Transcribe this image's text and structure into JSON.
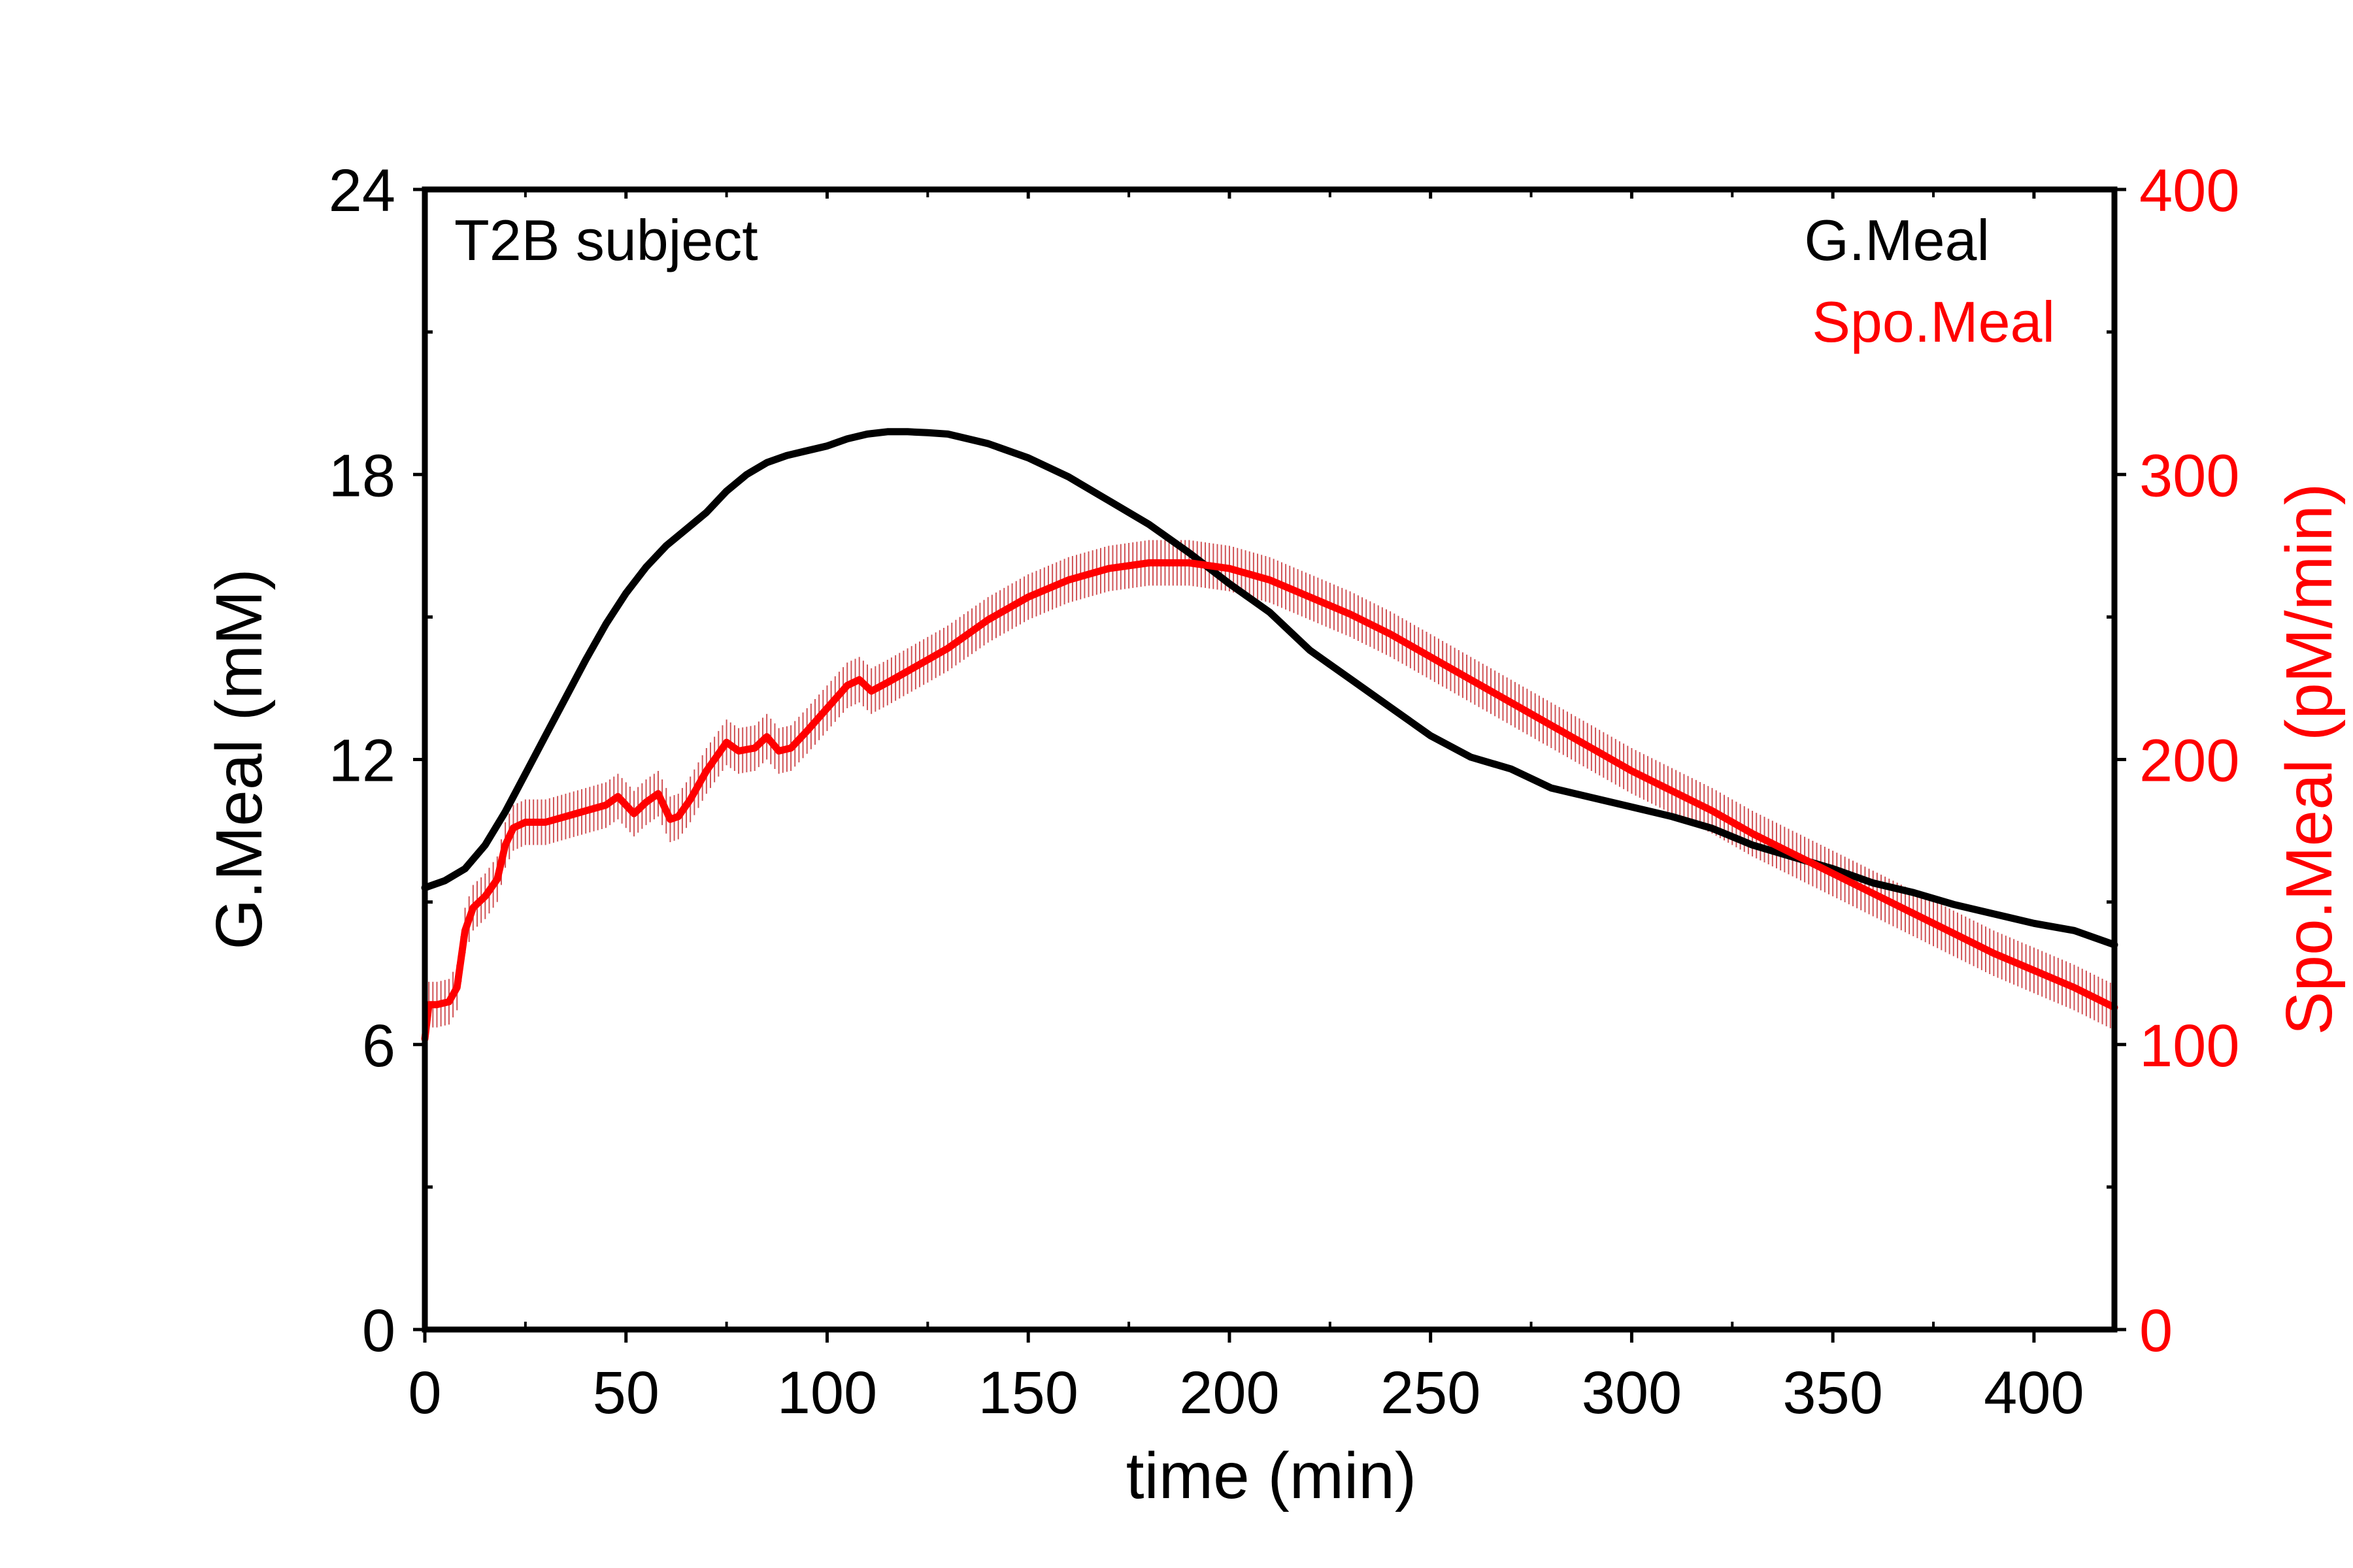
{
  "colors": {
    "left_series": "#000000",
    "right_series": "#ff0000",
    "right_series_band": "#c0181c",
    "axes": "#000000",
    "background": "#ffffff"
  },
  "chart_data": {
    "type": "line",
    "annotation": "T2B subject",
    "legend": {
      "placement": "top-right",
      "entries": [
        {
          "label": "G.Meal",
          "color": "#000000"
        },
        {
          "label": "Spo.Meal",
          "color": "#ff0000"
        }
      ]
    },
    "grid": false,
    "x_axis": {
      "label": "time (min)",
      "range": [
        0,
        420
      ],
      "ticks": [
        0,
        50,
        100,
        150,
        200,
        250,
        300,
        350,
        400
      ],
      "tick_labels": [
        "0",
        "50",
        "100",
        "150",
        "200",
        "250",
        "300",
        "350",
        "400"
      ]
    },
    "y_axis_left": {
      "label": "G.Meal (mM)",
      "range": [
        0,
        24
      ],
      "ticks": [
        0,
        6,
        12,
        18,
        24
      ],
      "tick_labels": [
        "0",
        "6",
        "12",
        "18",
        "24"
      ],
      "minor_ticks": [
        3,
        9,
        15,
        21
      ]
    },
    "y_axis_right": {
      "label": "Spo.Meal (pM/min)",
      "color": "#ff0000",
      "range": [
        0,
        400
      ],
      "ticks": [
        0,
        100,
        200,
        300,
        400
      ],
      "tick_labels": [
        "0",
        "100",
        "200",
        "300",
        "400"
      ],
      "minor_ticks": [
        50,
        150,
        250,
        350
      ]
    },
    "series": [
      {
        "name": "G.Meal",
        "axis": "left",
        "color": "#000000",
        "x": [
          0,
          5,
          10,
          15,
          20,
          25,
          30,
          35,
          40,
          45,
          50,
          55,
          60,
          65,
          70,
          75,
          80,
          85,
          90,
          95,
          100,
          105,
          110,
          115,
          120,
          125,
          130,
          140,
          150,
          160,
          170,
          180,
          190,
          200,
          210,
          220,
          230,
          240,
          250,
          260,
          270,
          280,
          290,
          300,
          310,
          320,
          330,
          340,
          350,
          360,
          370,
          380,
          390,
          400,
          410,
          420
        ],
        "y": [
          9.3,
          9.45,
          9.7,
          10.2,
          10.9,
          11.7,
          12.5,
          13.3,
          14.1,
          14.85,
          15.5,
          16.05,
          16.5,
          16.85,
          17.2,
          17.65,
          18.0,
          18.25,
          18.4,
          18.5,
          18.6,
          18.75,
          18.85,
          18.9,
          18.9,
          18.88,
          18.85,
          18.65,
          18.35,
          17.95,
          17.45,
          16.95,
          16.35,
          15.7,
          15.1,
          14.3,
          13.7,
          13.1,
          12.5,
          12.05,
          11.8,
          11.4,
          11.2,
          11.0,
          10.8,
          10.55,
          10.2,
          9.95,
          9.7,
          9.4,
          9.2,
          8.95,
          8.75,
          8.55,
          8.4,
          8.1
        ]
      },
      {
        "name": "Spo.Meal",
        "axis": "right",
        "color": "#ff0000",
        "x": [
          0,
          1,
          3,
          6,
          8,
          10,
          12,
          15,
          18,
          20,
          22,
          25,
          30,
          35,
          40,
          45,
          48,
          52,
          55,
          58,
          61,
          63,
          66,
          70,
          75,
          78,
          82,
          85,
          88,
          91,
          95,
          100,
          105,
          108,
          111,
          115,
          120,
          130,
          140,
          150,
          160,
          170,
          180,
          190,
          200,
          210,
          220,
          230,
          240,
          250,
          260,
          270,
          280,
          290,
          300,
          310,
          320,
          330,
          340,
          350,
          360,
          370,
          380,
          390,
          400,
          410,
          420
        ],
        "y": [
          102,
          114,
          114,
          115,
          120,
          140,
          148,
          152,
          158,
          170,
          176,
          178,
          178,
          180,
          182,
          184,
          187,
          181,
          185,
          188,
          179,
          180,
          186,
          196,
          206,
          203,
          204,
          208,
          203,
          204,
          210,
          218,
          226,
          228,
          224,
          227,
          231,
          239,
          249,
          257,
          263,
          267,
          269,
          269,
          267,
          263,
          257,
          251,
          244,
          236,
          228,
          220,
          212,
          204,
          196,
          189,
          182,
          174,
          167,
          160,
          153,
          146,
          139,
          132,
          126,
          120,
          113
        ],
        "error_band": 8
      }
    ]
  }
}
